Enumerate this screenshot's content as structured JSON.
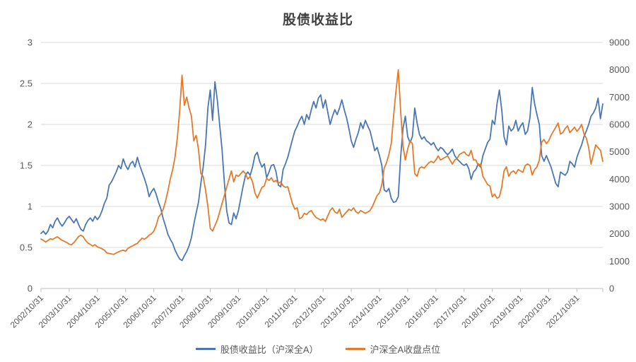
{
  "title": "股债收益比",
  "colors": {
    "ratio_line": "#4A76B4",
    "index_line": "#E4792A",
    "gridline": "#D9D9D9",
    "axis_line": "#BFBFBF",
    "axis_text": "#595959",
    "title_text": "#404040",
    "background": "#FFFFFF"
  },
  "chart_data": {
    "type": "line",
    "title": "股债收益比",
    "grid": "horizontal",
    "legend_position": "bottom",
    "x_start": "2002/10",
    "x_step_months": 1,
    "x_tick_interval_months": 12,
    "x_tick_labels": [
      "2002/10/31",
      "2003/10/31",
      "2004/10/31",
      "2005/10/31",
      "2006/10/31",
      "2007/10/31",
      "2008/10/31",
      "2009/10/31",
      "2010/10/31",
      "2011/10/31",
      "2012/10/31",
      "2013/10/31",
      "2014/10/31",
      "2015/10/31",
      "2016/10/31",
      "2017/10/31",
      "2018/10/31",
      "2019/10/31",
      "2020/10/31",
      "2021/10/31"
    ],
    "y_left": {
      "min": 0,
      "max": 3,
      "ticks": [
        "0",
        "0.5",
        "1",
        "1.5",
        "2",
        "2.5",
        "3"
      ]
    },
    "y_right": {
      "min": 0,
      "max": 9000,
      "ticks": [
        "0",
        "1000",
        "2000",
        "3000",
        "4000",
        "5000",
        "6000",
        "7000",
        "8000",
        "9000"
      ]
    },
    "series": [
      {
        "name": "股债收益比（沪深全A）",
        "axis": "left",
        "color": "#4A76B4",
        "values": [
          0.67,
          0.7,
          0.66,
          0.7,
          0.78,
          0.74,
          0.82,
          0.86,
          0.8,
          0.76,
          0.8,
          0.85,
          0.88,
          0.84,
          0.8,
          0.85,
          0.78,
          0.72,
          0.7,
          0.78,
          0.83,
          0.86,
          0.82,
          0.88,
          0.84,
          0.88,
          0.95,
          1.04,
          1.1,
          1.26,
          1.3,
          1.36,
          1.42,
          1.5,
          1.46,
          1.58,
          1.5,
          1.45,
          1.52,
          1.55,
          1.48,
          1.6,
          1.5,
          1.42,
          1.34,
          1.25,
          1.12,
          1.18,
          1.22,
          1.15,
          1.05,
          0.97,
          0.85,
          0.76,
          0.66,
          0.6,
          0.55,
          0.47,
          0.41,
          0.36,
          0.34,
          0.4,
          0.45,
          0.52,
          0.62,
          0.78,
          0.92,
          1.05,
          1.28,
          1.48,
          1.75,
          2.2,
          2.42,
          2.05,
          2.52,
          2.3,
          2.0,
          1.7,
          1.3,
          0.95,
          0.8,
          0.78,
          0.92,
          0.85,
          0.95,
          1.1,
          1.25,
          1.38,
          1.42,
          1.38,
          1.48,
          1.62,
          1.66,
          1.55,
          1.48,
          1.52,
          1.35,
          1.42,
          1.5,
          1.51,
          1.42,
          1.26,
          1.24,
          1.45,
          1.52,
          1.6,
          1.71,
          1.82,
          1.92,
          1.98,
          2.05,
          2.1,
          2.0,
          2.12,
          2.06,
          2.18,
          2.28,
          2.2,
          2.32,
          2.36,
          2.2,
          2.3,
          2.15,
          2.0,
          2.1,
          2.18,
          2.12,
          2.2,
          2.3,
          2.18,
          2.08,
          1.95,
          1.8,
          1.72,
          1.82,
          1.9,
          2.02,
          1.95,
          2.05,
          1.98,
          1.92,
          1.8,
          1.68,
          1.72,
          1.62,
          1.5,
          1.2,
          1.18,
          1.22,
          1.1,
          1.05,
          1.06,
          1.12,
          1.6,
          1.95,
          2.1,
          1.85,
          1.78,
          1.85,
          2.2,
          2.02,
          1.88,
          1.82,
          1.85,
          1.8,
          1.78,
          1.75,
          1.78,
          1.72,
          1.68,
          1.72,
          1.7,
          1.66,
          1.63,
          1.66,
          1.7,
          1.62,
          1.58,
          1.55,
          1.52,
          1.5,
          1.52,
          1.46,
          1.33,
          1.42,
          1.45,
          1.52,
          1.48,
          1.62,
          1.7,
          1.78,
          1.82,
          2.05,
          2.0,
          2.25,
          2.42,
          2.18,
          1.85,
          1.75,
          1.98,
          1.92,
          1.95,
          2.05,
          1.92,
          1.98,
          2.02,
          1.88,
          1.92,
          2.08,
          2.45,
          2.25,
          2.12,
          2.0,
          1.62,
          1.55,
          1.62,
          1.55,
          1.48,
          1.38,
          1.28,
          1.24,
          1.42,
          1.4,
          1.38,
          1.42,
          1.55,
          1.52,
          1.48,
          1.6,
          1.68,
          1.75,
          1.85,
          1.92,
          2.0,
          2.1,
          2.14,
          2.2,
          2.32,
          2.07,
          2.25
        ]
      },
      {
        "name": "沪深全A收盘点位",
        "axis": "right",
        "color": "#E4792A",
        "values": [
          1810,
          1760,
          1700,
          1760,
          1820,
          1790,
          1850,
          1890,
          1820,
          1760,
          1720,
          1680,
          1620,
          1600,
          1680,
          1790,
          1900,
          1950,
          1890,
          1750,
          1660,
          1610,
          1550,
          1600,
          1520,
          1490,
          1450,
          1400,
          1300,
          1280,
          1260,
          1250,
          1300,
          1340,
          1380,
          1400,
          1360,
          1470,
          1520,
          1560,
          1610,
          1650,
          1750,
          1840,
          1800,
          1860,
          1950,
          2000,
          2100,
          2300,
          2610,
          2720,
          2900,
          3200,
          3570,
          4000,
          4340,
          4800,
          5500,
          6500,
          7800,
          6700,
          7000,
          6600,
          6300,
          5400,
          5600,
          5100,
          4200,
          4100,
          3600,
          3000,
          2200,
          2100,
          2300,
          2500,
          2800,
          3100,
          3400,
          3700,
          4000,
          4300,
          3900,
          4150,
          4100,
          4200,
          4300,
          4200,
          4000,
          4100,
          3900,
          3500,
          3310,
          3500,
          3700,
          3750,
          4030,
          3950,
          4050,
          3900,
          3950,
          3850,
          3900,
          3750,
          3700,
          3720,
          3400,
          3100,
          2900,
          2950,
          2550,
          2600,
          2750,
          2700,
          2800,
          2850,
          2700,
          2600,
          2550,
          2500,
          2550,
          2450,
          2650,
          2850,
          2950,
          2800,
          2750,
          2900,
          2600,
          2700,
          2800,
          2900,
          2850,
          2950,
          2800,
          2750,
          2850,
          2800,
          2750,
          2800,
          2850,
          3000,
          3200,
          3400,
          3500,
          3800,
          4400,
          4600,
          4900,
          5300,
          6300,
          7200,
          8000,
          6500,
          5200,
          4700,
          5100,
          5400,
          5300,
          4200,
          4100,
          4400,
          4450,
          4400,
          4500,
          4600,
          4650,
          4600,
          4700,
          4850,
          4700,
          4750,
          4800,
          4850,
          4700,
          4550,
          4700,
          4750,
          4900,
          4950,
          5000,
          4900,
          4850,
          5050,
          4700,
          4700,
          4500,
          4550,
          4100,
          3950,
          3800,
          3750,
          3350,
          3450,
          3300,
          3350,
          3700,
          4300,
          4450,
          4100,
          4250,
          4300,
          4200,
          4350,
          4300,
          4250,
          4500,
          4550,
          4500,
          4150,
          4350,
          4450,
          4700,
          5350,
          5450,
          5300,
          5400,
          5600,
          5750,
          5900,
          6050,
          5650,
          5700,
          5850,
          5950,
          5700,
          5800,
          5900,
          5750,
          5850,
          6000,
          5650,
          5500,
          5150,
          4550,
          4900,
          5250,
          5150,
          5050,
          4650
        ]
      }
    ]
  }
}
